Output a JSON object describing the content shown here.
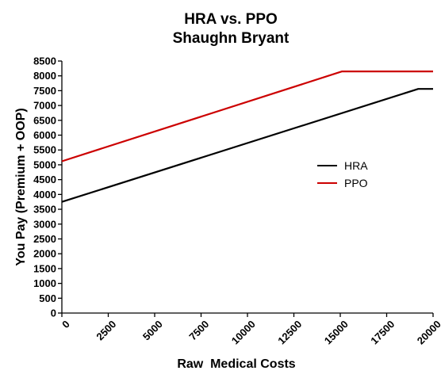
{
  "chart_data": {
    "type": "line",
    "title": "HRA vs. PPO",
    "subtitle": "Shaughn Bryant",
    "xlabel": "Raw  Medical Costs",
    "ylabel": "You Pay (Premium + OOP)",
    "xlim": [
      0,
      20000
    ],
    "ylim": [
      0,
      8500
    ],
    "xticks": [
      "0",
      "2500",
      "5000",
      "7500",
      "10000",
      "12500",
      "15000",
      "17500",
      "20000"
    ],
    "yticks": [
      "0",
      "500",
      "1000",
      "1500",
      "2000",
      "2500",
      "3000",
      "3500",
      "4000",
      "4500",
      "5000",
      "5500",
      "6000",
      "6500",
      "7000",
      "7500",
      "8000",
      "8500"
    ],
    "grid": false,
    "legend_position": "right",
    "series": [
      {
        "name": "HRA",
        "color": "#000000",
        "x": [
          0,
          19200,
          20000
        ],
        "y": [
          3750,
          7560,
          7560
        ]
      },
      {
        "name": "PPO",
        "color": "#cc0000",
        "x": [
          0,
          15100,
          20000
        ],
        "y": [
          5120,
          8150,
          8150
        ]
      }
    ]
  }
}
